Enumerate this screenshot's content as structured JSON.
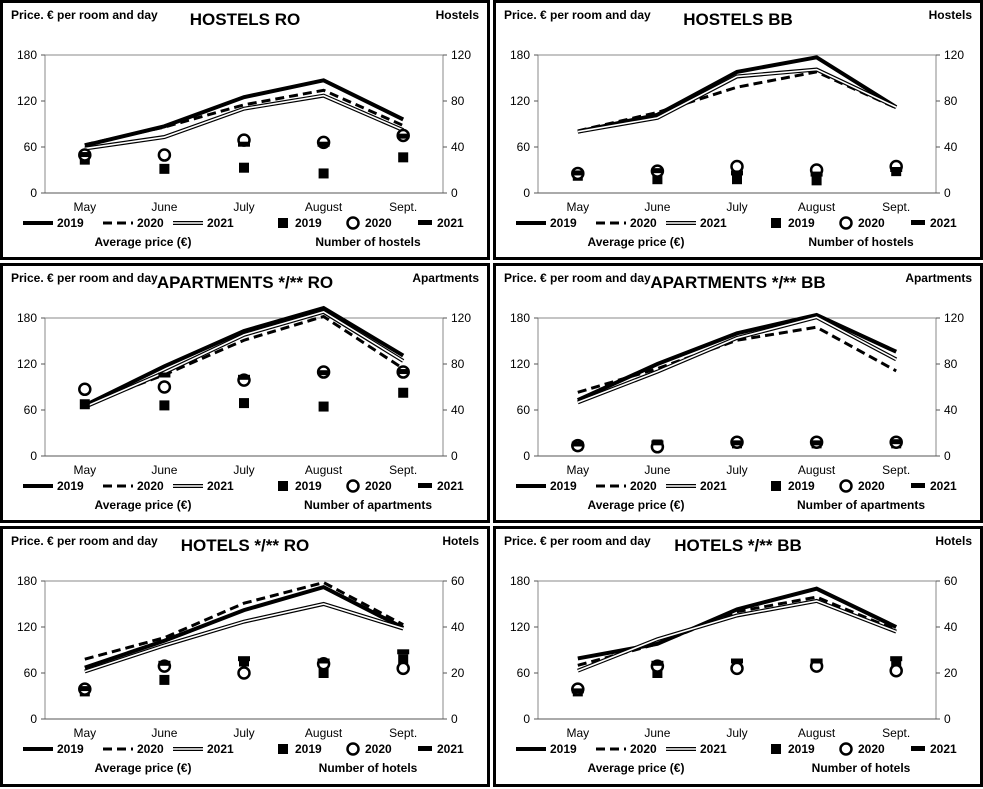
{
  "legend": {
    "price_series": [
      "2019",
      "2020",
      "2021"
    ],
    "count_series": [
      "2019",
      "2020",
      "2021"
    ],
    "price_caption": "Average price (€)"
  },
  "chart_data": [
    {
      "type": "line",
      "title": "HOSTELS RO",
      "ylabel_left": "Price. € per room and day",
      "ylabel_right": "Hostels",
      "count_caption": "Number of hostels",
      "categories": [
        "May",
        "June",
        "July",
        "August",
        "Sept."
      ],
      "left_ticks": [
        "0",
        "60",
        "120",
        "180"
      ],
      "right_ticks": [
        "0",
        "40",
        "80",
        "120"
      ],
      "ylim_left": [
        0,
        180
      ],
      "ylim_right": [
        0,
        120
      ],
      "price_series": [
        {
          "name": "2019",
          "values": [
            62,
            87,
            125,
            147,
            96
          ]
        },
        {
          "name": "2020",
          "values": [
            63,
            86,
            115,
            134,
            88
          ]
        },
        {
          "name": "2021",
          "values": [
            58,
            73,
            110,
            127,
            82
          ]
        }
      ],
      "count_series": [
        {
          "name": "2019",
          "values": [
            29,
            21,
            22,
            17,
            31
          ]
        },
        {
          "name": "2020",
          "values": [
            33,
            33,
            46,
            44,
            50
          ]
        },
        {
          "name": "2021",
          "values": [
            33,
            null,
            42,
            42,
            49
          ]
        }
      ]
    },
    {
      "type": "line",
      "title": "HOSTELS BB",
      "ylabel_left": "Price. € per room and day",
      "ylabel_right": "Hostels",
      "count_caption": "Number of hostels",
      "categories": [
        "May",
        "June",
        "July",
        "August",
        "Sept."
      ],
      "left_ticks": [
        "0",
        "60",
        "120",
        "180"
      ],
      "right_ticks": [
        "0",
        "40",
        "80",
        "120"
      ],
      "ylim_left": [
        0,
        180
      ],
      "ylim_right": [
        0,
        120
      ],
      "price_series": [
        {
          "name": "2019",
          "values": [
            80,
            102,
            158,
            177,
            112
          ]
        },
        {
          "name": "2020",
          "values": [
            81,
            105,
            138,
            158,
            111
          ]
        },
        {
          "name": "2021",
          "values": [
            80,
            98,
            152,
            161,
            112
          ]
        }
      ],
      "count_series": [
        {
          "name": "2019",
          "values": [
            15,
            12,
            12,
            11,
            19
          ]
        },
        {
          "name": "2020",
          "values": [
            17,
            19,
            23,
            20,
            23
          ]
        },
        {
          "name": "2021",
          "values": [
            17,
            19,
            17,
            16,
            20
          ]
        }
      ]
    },
    {
      "type": "line",
      "title": "APARTMENTS */** RO",
      "ylabel_left": "Price. € per room and day",
      "ylabel_right": "Apartments",
      "count_caption": "Number of apartments",
      "categories": [
        "May",
        "June",
        "July",
        "August",
        "Sept."
      ],
      "left_ticks": [
        "0",
        "60",
        "120",
        "180"
      ],
      "right_ticks": [
        "0",
        "40",
        "80",
        "120"
      ],
      "ylim_left": [
        0,
        180
      ],
      "ylim_right": [
        0,
        120
      ],
      "price_series": [
        {
          "name": "2019",
          "values": [
            66,
            117,
            163,
            193,
            131
          ]
        },
        {
          "name": "2020",
          "values": [
            67,
            106,
            151,
            182,
            114
          ]
        },
        {
          "name": "2021",
          "values": [
            64,
            109,
            158,
            188,
            124
          ]
        }
      ],
      "count_series": [
        {
          "name": "2019",
          "values": [
            45,
            44,
            46,
            43,
            55
          ]
        },
        {
          "name": "2020",
          "values": [
            58,
            60,
            66,
            73,
            73
          ]
        },
        {
          "name": "2021",
          "values": [
            null,
            70,
            68,
            72,
            73
          ]
        }
      ]
    },
    {
      "type": "line",
      "title": "APARTMENTS */** BB",
      "ylabel_left": "Price. € per room and day",
      "ylabel_right": "Apartments",
      "count_caption": "Number of apartments",
      "categories": [
        "May",
        "June",
        "July",
        "August",
        "Sept."
      ],
      "left_ticks": [
        "0",
        "60",
        "120",
        "180"
      ],
      "right_ticks": [
        "0",
        "40",
        "80",
        "120"
      ],
      "ylim_left": [
        0,
        180
      ],
      "ylim_right": [
        0,
        120
      ],
      "price_series": [
        {
          "name": "2019",
          "values": [
            73,
            120,
            160,
            184,
            136
          ]
        },
        {
          "name": "2020",
          "values": [
            83,
            114,
            151,
            168,
            111
          ]
        },
        {
          "name": "2021",
          "values": [
            70,
            110,
            154,
            181,
            126
          ]
        }
      ],
      "count_series": [
        {
          "name": "2019",
          "values": [
            9,
            10,
            11,
            11,
            11
          ]
        },
        {
          "name": "2020",
          "values": [
            9,
            8,
            12,
            12,
            12
          ]
        },
        {
          "name": "2021",
          "values": [
            10,
            11,
            11,
            11,
            12
          ]
        }
      ]
    },
    {
      "type": "line",
      "title": "HOTELS */**  RO",
      "ylabel_left": "Price. € per room and day",
      "ylabel_right": "Hotels",
      "count_caption": "Number of hotels",
      "categories": [
        "May",
        "June",
        "July",
        "August",
        "Sept."
      ],
      "left_ticks": [
        "0",
        "60",
        "120",
        "180"
      ],
      "right_ticks": [
        "0",
        "20",
        "40",
        "60"
      ],
      "ylim_left": [
        0,
        180
      ],
      "ylim_right": [
        0,
        60
      ],
      "price_series": [
        {
          "name": "2019",
          "values": [
            67,
            102,
            142,
            172,
            119
          ]
        },
        {
          "name": "2020",
          "values": [
            78,
            106,
            151,
            178,
            123
          ]
        },
        {
          "name": "2021",
          "values": [
            62,
            96,
            127,
            150,
            118
          ]
        }
      ],
      "count_series": [
        {
          "name": "2019",
          "values": [
            12,
            17,
            25,
            20,
            26
          ]
        },
        {
          "name": "2020",
          "values": [
            13,
            23,
            20,
            24,
            22
          ]
        },
        {
          "name": "2021",
          "values": [
            13,
            24,
            26,
            25,
            29
          ]
        }
      ]
    },
    {
      "type": "line",
      "title": "HOTELS */** BB",
      "ylabel_left": "Price. € per room and day",
      "ylabel_right": "Hotels",
      "count_caption": "Number of hotels",
      "categories": [
        "May",
        "June",
        "July",
        "August",
        "Sept."
      ],
      "left_ticks": [
        "0",
        "60",
        "120",
        "180"
      ],
      "right_ticks": [
        "0",
        "20",
        "40",
        "60"
      ],
      "ylim_left": [
        0,
        180
      ],
      "ylim_right": [
        0,
        60
      ],
      "price_series": [
        {
          "name": "2019",
          "values": [
            79,
            98,
            143,
            170,
            120
          ]
        },
        {
          "name": "2020",
          "values": [
            70,
            98,
            140,
            159,
            116
          ]
        },
        {
          "name": "2021",
          "values": [
            63,
            104,
            135,
            154,
            114
          ]
        }
      ],
      "count_series": [
        {
          "name": "2019",
          "values": [
            12,
            20,
            24,
            24,
            24
          ]
        },
        {
          "name": "2020",
          "values": [
            13,
            23,
            22,
            23,
            21
          ]
        },
        {
          "name": "2021",
          "values": [
            12,
            24,
            25,
            25,
            26
          ]
        }
      ]
    }
  ]
}
